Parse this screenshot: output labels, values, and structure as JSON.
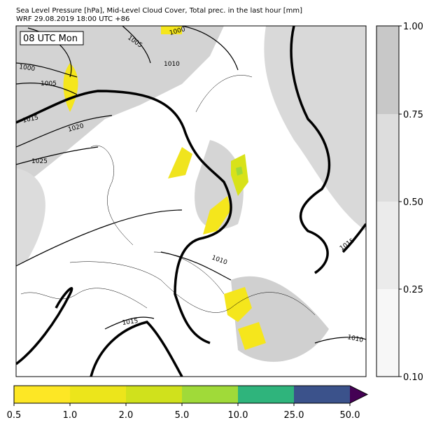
{
  "header": {
    "title": "Sea Level Pressure [hPa], Mid-Level Cloud Cover, Total prec. in the last hour [mm]",
    "subtitle": "WRF 29.08.2019 18:00 UTC +86"
  },
  "map": {
    "time_label": "08 UTC Mon",
    "isobar_labels": [
      "1005",
      "1000",
      "1010",
      "1000",
      "1005",
      "1015",
      "1020",
      "1025",
      "1015",
      "1010",
      "1015",
      "1010"
    ]
  },
  "cloud_colorbar": {
    "ticks": [
      "0.10",
      "0.25",
      "0.50",
      "0.75",
      "1.00"
    ]
  },
  "precip_colorbar": {
    "ticks": [
      "0.5",
      "1.0",
      "2.0",
      "5.0",
      "10.0",
      "25.0",
      "50.0"
    ]
  }
}
